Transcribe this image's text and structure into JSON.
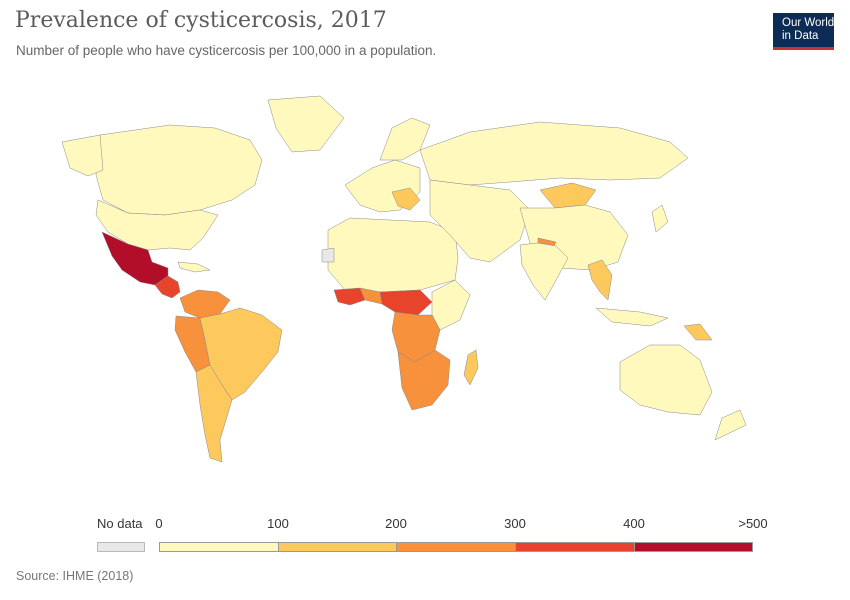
{
  "header": {
    "title": "Prevalence of cysticercosis, 2017",
    "subtitle": "Number of people who have cysticercosis per 100,000 in a population."
  },
  "logo": {
    "line1": "Our World",
    "line2": "in Data"
  },
  "legend": {
    "no_data_label": "No data",
    "no_data_color": "#e8e8e8",
    "ticks": [
      "0",
      "100",
      "200",
      "300",
      "400",
      ">500"
    ],
    "colors": [
      "#fff9bd",
      "#fdc95d",
      "#f8913c",
      "#e8432b",
      "#b20e29"
    ]
  },
  "chart_data": {
    "type": "choropleth",
    "title": "Prevalence of cysticercosis, 2017",
    "subtitle": "Number of people who have cysticercosis per 100,000 in a population.",
    "bins": [
      {
        "range": [
          0,
          100
        ],
        "color": "#fff9bd"
      },
      {
        "range": [
          100,
          200
        ],
        "color": "#fdc95d"
      },
      {
        "range": [
          200,
          300
        ],
        "color": "#f8913c"
      },
      {
        "range": [
          300,
          400
        ],
        "color": "#e8432b"
      },
      {
        "range": [
          400,
          500
        ],
        "color": "#b20e29"
      }
    ],
    "regions": [
      {
        "region": "Mexico",
        "bin": 4
      },
      {
        "region": "Guatemala",
        "bin": 4
      },
      {
        "region": "Honduras",
        "bin": 4
      },
      {
        "region": "Nicaragua",
        "bin": 3
      },
      {
        "region": "Colombia",
        "bin": 2
      },
      {
        "region": "Venezuela",
        "bin": 2
      },
      {
        "region": "Ecuador",
        "bin": 2
      },
      {
        "region": "Peru",
        "bin": 2
      },
      {
        "region": "Bolivia",
        "bin": 1
      },
      {
        "region": "Brazil",
        "bin": 1
      },
      {
        "region": "Argentina",
        "bin": 1
      },
      {
        "region": "Nigeria",
        "bin": 3
      },
      {
        "region": "Cameroon",
        "bin": 3
      },
      {
        "region": "Central African Republic",
        "bin": 3
      },
      {
        "region": "Sierra Leone",
        "bin": 3
      },
      {
        "region": "Liberia",
        "bin": 3
      },
      {
        "region": "Ghana",
        "bin": 2
      },
      {
        "region": "DR Congo",
        "bin": 2
      },
      {
        "region": "Angola",
        "bin": 2
      },
      {
        "region": "Zambia",
        "bin": 2
      },
      {
        "region": "Mozambique",
        "bin": 2
      },
      {
        "region": "South Africa",
        "bin": 2
      },
      {
        "region": "Madagascar",
        "bin": 1
      },
      {
        "region": "Mongolia",
        "bin": 1
      },
      {
        "region": "Nepal",
        "bin": 2
      },
      {
        "region": "Vietnam",
        "bin": 1
      },
      {
        "region": "Laos",
        "bin": 1
      },
      {
        "region": "Papua New Guinea",
        "bin": 1
      },
      {
        "region": "Balkans",
        "bin": 1
      },
      {
        "region": "Western Sahara",
        "bin": null
      }
    ]
  },
  "footer": {
    "source": "Source: IHME (2018)"
  }
}
